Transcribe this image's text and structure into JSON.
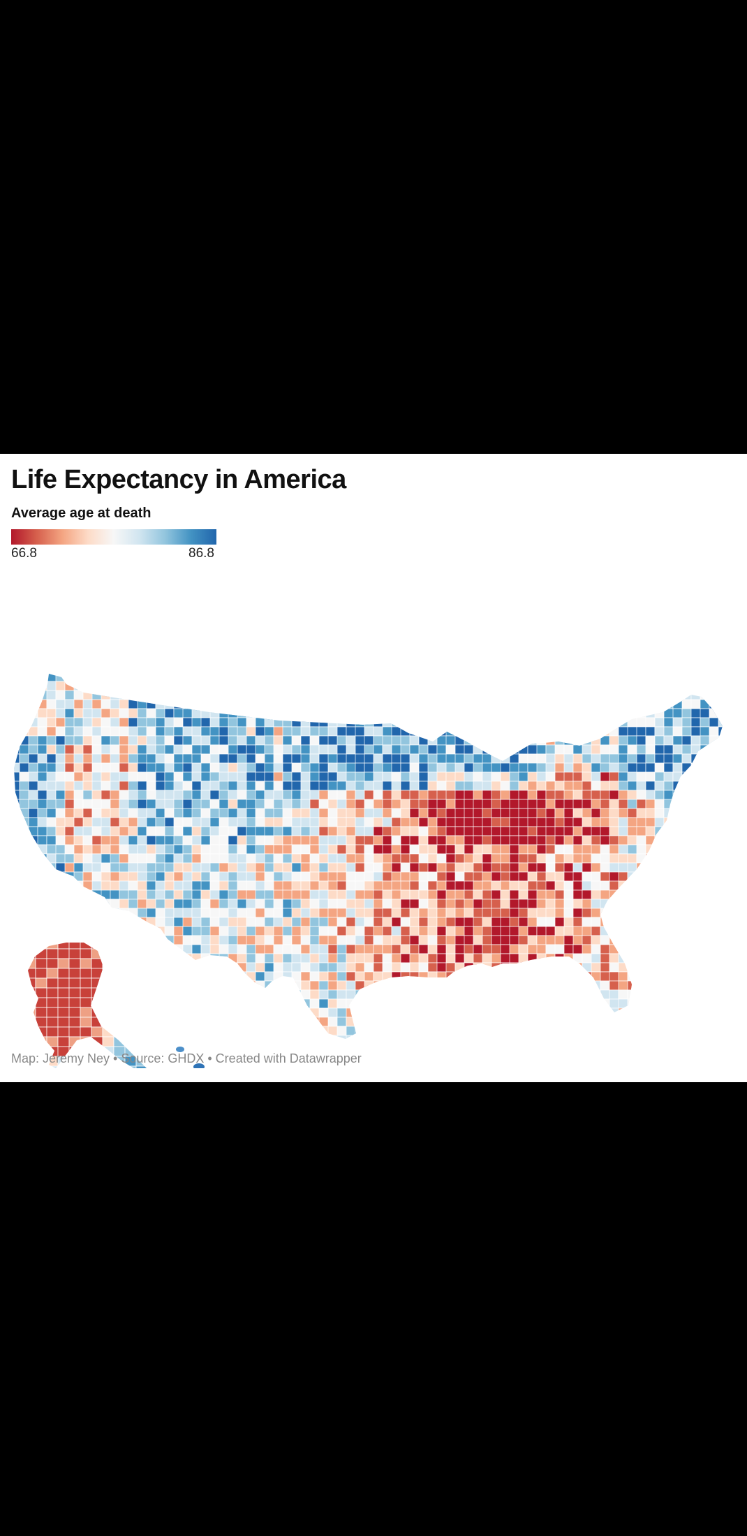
{
  "map": {
    "title": "Life Expectancy in America",
    "legend": {
      "label": "Average age at death",
      "min": "66.8",
      "max": "86.8",
      "colors": [
        "#b2182b",
        "#d6604d",
        "#f4a582",
        "#fddbc7",
        "#f7f7f7",
        "#d1e5f0",
        "#92c5de",
        "#4393c3",
        "#2166ac"
      ]
    },
    "credit": "Map: Jeremy Ney • Source: GHDX • Created with Datawrapper",
    "colors": {
      "low": "#c8413a",
      "mid_low": "#eea084",
      "neutral": "#f4f1ee",
      "mid_high": "#9cc3e2",
      "high": "#2f73b6"
    }
  }
}
